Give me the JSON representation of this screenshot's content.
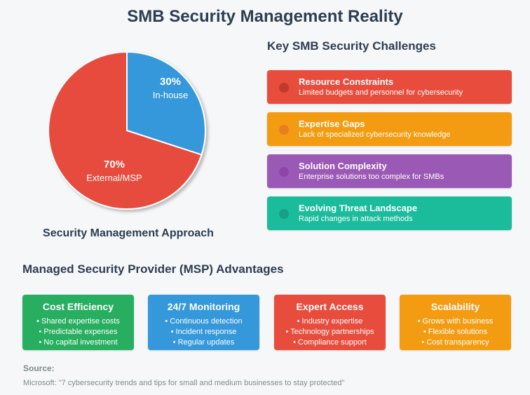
{
  "title": "SMB Security Management Reality",
  "chart_data": {
    "type": "pie",
    "title": "Security Management Approach",
    "slices": [
      {
        "label": "In-house",
        "value": 30,
        "display": "30%",
        "color": "#3498db"
      },
      {
        "label": "External/MSP",
        "value": 70,
        "display": "70%",
        "color": "#e74c3c"
      }
    ]
  },
  "challenges": {
    "title": "Key SMB Security Challenges",
    "items": [
      {
        "title": "Resource Constraints",
        "desc": "Limited budgets and personnel for cybersecurity",
        "color": "#e74c3c",
        "dot": "#c0392b"
      },
      {
        "title": "Expertise Gaps",
        "desc": "Lack of specialized cybersecurity knowledge",
        "color": "#f39c12",
        "dot": "#e67e22"
      },
      {
        "title": "Solution Complexity",
        "desc": "Enterprise solutions too complex for SMBs",
        "color": "#9b59b6",
        "dot": "#8e44ad"
      },
      {
        "title": "Evolving Threat Landscape",
        "desc": "Rapid changes in attack methods",
        "color": "#1abc9c",
        "dot": "#16a085"
      }
    ]
  },
  "advantages": {
    "title": "Managed Security Provider (MSP) Advantages",
    "items": [
      {
        "title": "Cost Efficiency",
        "color": "#27ae60",
        "points": [
          "• Shared expertise costs",
          "• Predictable expenses",
          "• No capital investment"
        ]
      },
      {
        "title": "24/7 Monitoring",
        "color": "#3498db",
        "points": [
          "• Continuous detection",
          "• Incident response",
          "• Regular updates"
        ]
      },
      {
        "title": "Expert Access",
        "color": "#e74c3c",
        "points": [
          "• Industry expertise",
          "• Technology partnerships",
          "• Compliance support"
        ]
      },
      {
        "title": "Scalability",
        "color": "#f39c12",
        "points": [
          "• Grows with business",
          "• Flexible solutions",
          "• Cost transparency"
        ]
      }
    ]
  },
  "source": {
    "label": "Source:",
    "text": "Microsoft: \"7 cybersecurity trends and tips for small and medium businesses to stay protected\""
  }
}
